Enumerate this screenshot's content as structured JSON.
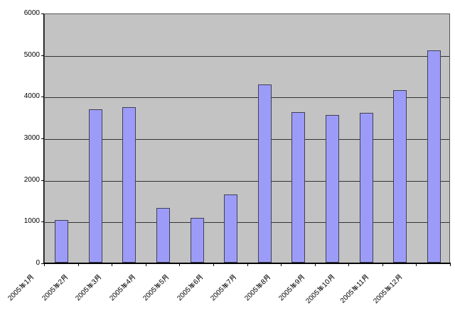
{
  "chart_data": {
    "type": "bar",
    "title": "",
    "xlabel": "",
    "ylabel": "",
    "categories": [
      "2005年1月",
      "2005年2月",
      "2005年3月",
      "2005年4月",
      "2005年5月",
      "2005年6月",
      "2005年7月",
      "2005年8月",
      "2005年9月",
      "2005年10月",
      "2005年11月",
      "2005年12月"
    ],
    "values": [
      1030,
      3690,
      3730,
      1310,
      1080,
      1640,
      4270,
      3620,
      3540,
      3590,
      4150,
      5100
    ],
    "ylim": [
      0,
      6000
    ],
    "yticks": [
      0,
      1000,
      2000,
      3000,
      4000,
      5000,
      6000
    ],
    "grid": true,
    "legend": false,
    "plot_area_bg": "#c3c3c3",
    "bar_fill": "#9c9cf8",
    "bar_border": "#3f3f55",
    "gridline_color": "#333333",
    "axis_color": "#000000",
    "background": "#ffffff",
    "label_color": "#000000"
  }
}
